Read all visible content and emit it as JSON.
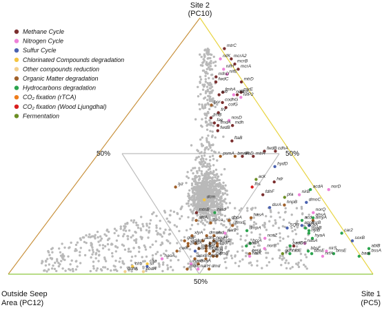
{
  "chart_data": {
    "type": "scatter",
    "subtype": "ternary",
    "vertices": {
      "top": {
        "line1": "Site 2",
        "line2": "(PC10)"
      },
      "left": {
        "line1": "Outside Seep",
        "line2": "Area (PC12)"
      },
      "right": {
        "line1": "Site 1",
        "line2": "(PC5)"
      }
    },
    "edge_labels": {
      "left": "50%",
      "right": "50%",
      "bottom": "50%"
    },
    "edge_colors": {
      "left": "#c8913c",
      "right": "#8ec63f",
      "top": "#e8d440"
    },
    "background_point_color": "#b9b9b9",
    "categories": [
      {
        "name": "Methane Cycle",
        "color": "#7b2f2f"
      },
      {
        "name": "Nitrogen Cycle",
        "color": "#ee82d8"
      },
      {
        "name": "Sulfur Cycle",
        "color": "#4a62b0"
      },
      {
        "name": "Chlorinated Compounds degradation",
        "color": "#f4c542"
      },
      {
        "name": "Other compounds reduction",
        "color": "#f2cf8e"
      },
      {
        "name": "Organic Matter degradation",
        "color": "#a0602a"
      },
      {
        "name": "Hydrocarbons degradation",
        "color": "#2ca44e"
      },
      {
        "name": "CO₂ fixation (rTCA)",
        "color": "#ee7d1b"
      },
      {
        "name": "CO₂ fixation (Wood Ljungdhal)",
        "color": "#d91e1e"
      },
      {
        "name": "Fermentation",
        "color": "#6b8e23"
      }
    ],
    "points": [
      {
        "label": "mtrC",
        "c": 0,
        "a": 0.88,
        "b": 0.07
      },
      {
        "label": "nifK",
        "c": 1,
        "a": 0.84,
        "b": 0.06
      },
      {
        "label": "mcrA2",
        "c": 0,
        "a": 0.84,
        "b": 0.09
      },
      {
        "label": "mcrB",
        "c": 0,
        "a": 0.82,
        "b": 0.1
      },
      {
        "label": "nifH",
        "c": 1,
        "a": 0.8,
        "b": 0.07
      },
      {
        "label": "mcrA",
        "c": 0,
        "a": 0.8,
        "b": 0.11
      },
      {
        "label": "mfnD",
        "c": 0,
        "a": 0.77,
        "b": 0.05
      },
      {
        "label": "nifE",
        "c": 1,
        "a": 0.78,
        "b": 0.08
      },
      {
        "label": "fwdC",
        "c": 0,
        "a": 0.75,
        "b": 0.05
      },
      {
        "label": "mtrD",
        "c": 0,
        "a": 0.75,
        "b": 0.12
      },
      {
        "label": "mtrE",
        "c": 0,
        "a": 0.71,
        "b": 0.12
      },
      {
        "label": "mfr",
        "c": 0,
        "a": 0.7,
        "b": 0.06
      },
      {
        "label": "fmhA",
        "c": 0,
        "a": 0.71,
        "b": 0.07
      },
      {
        "label": "nifB",
        "c": 1,
        "a": 0.7,
        "b": 0.1
      },
      {
        "label": "mtrF",
        "c": 0,
        "a": 0.7,
        "b": 0.11
      },
      {
        "label": "nifP2",
        "c": 1,
        "a": 0.69,
        "b": 0.12
      },
      {
        "label": "por",
        "c": 5,
        "a": 0.66,
        "b": 0.04
      },
      {
        "label": "codhG",
        "c": 0,
        "a": 0.67,
        "b": 0.07
      },
      {
        "label": "cofG",
        "c": 0,
        "a": 0.65,
        "b": 0.08
      },
      {
        "label": "frv",
        "c": 0,
        "a": 0.63,
        "b": 0.06
      },
      {
        "label": "frhB",
        "c": 0,
        "a": 0.61,
        "b": 0.04
      },
      {
        "label": "nosD",
        "c": 1,
        "a": 0.6,
        "b": 0.09
      },
      {
        "label": "fae",
        "c": 0,
        "a": 0.59,
        "b": 0.05
      },
      {
        "label": "mdh",
        "c": 0,
        "a": 0.58,
        "b": 0.1
      },
      {
        "label": "fmdA",
        "c": 0,
        "a": 0.58,
        "b": 0.06
      },
      {
        "label": "fwdB",
        "c": 0,
        "a": 0.56,
        "b": 0.06
      },
      {
        "label": "ftaB",
        "c": 0,
        "a": 0.52,
        "b": 0.1
      },
      {
        "label": "fwdB",
        "c": 0,
        "a": 0.48,
        "b": 0.19
      },
      {
        "label": "cdhA",
        "c": 0,
        "a": 0.48,
        "b": 0.22
      },
      {
        "label": "psmA",
        "c": 5,
        "a": 0.46,
        "b": 0.07
      },
      {
        "label": "bmnR",
        "c": 5,
        "a": 0.46,
        "b": 0.11
      },
      {
        "label": "lksD",
        "c": 0,
        "a": 0.46,
        "b": 0.13
      },
      {
        "label": "mtrH",
        "c": 0,
        "a": 0.46,
        "b": 0.16
      },
      {
        "label": "hydD",
        "c": 2,
        "a": 0.42,
        "b": 0.22
      },
      {
        "label": "ack",
        "c": 9,
        "a": 0.37,
        "b": 0.17
      },
      {
        "label": "hdr",
        "c": 0,
        "a": 0.36,
        "b": 0.22
      },
      {
        "label": "lyz",
        "c": 5,
        "a": 0.34,
        "b": -0.05
      },
      {
        "label": "fhs",
        "c": 8,
        "a": 0.34,
        "b": 0.16
      },
      {
        "label": "acdA",
        "c": 6,
        "a": 0.33,
        "b": 0.32
      },
      {
        "label": "nirB",
        "c": 1,
        "a": 0.31,
        "b": 0.29
      },
      {
        "label": "norD",
        "c": 1,
        "a": 0.33,
        "b": 0.37
      },
      {
        "label": "pta",
        "c": 9,
        "a": 0.3,
        "b": 0.25
      },
      {
        "label": "fdhF",
        "c": 0,
        "a": 0.31,
        "b": 0.19
      },
      {
        "label": "dcm",
        "c": 3,
        "a": 0.29,
        "b": 0.03
      },
      {
        "label": "dmoC",
        "c": 2,
        "a": 0.28,
        "b": 0.31
      },
      {
        "label": "hnpB",
        "c": 5,
        "a": 0.27,
        "b": 0.25
      },
      {
        "label": "dsrA",
        "c": 2,
        "a": 0.26,
        "b": 0.21
      },
      {
        "label": "mtnB",
        "c": 0,
        "a": 0.24,
        "b": 0.01
      },
      {
        "label": "hiad",
        "c": 6,
        "a": 0.24,
        "b": 0.06
      },
      {
        "label": "norQ",
        "c": 1,
        "a": 0.24,
        "b": 0.33
      },
      {
        "label": "hasA",
        "c": 5,
        "a": 0.22,
        "b": 0.16
      },
      {
        "label": "ahsA",
        "c": 6,
        "a": 0.22,
        "b": 0.33
      },
      {
        "label": "afcA",
        "c": 5,
        "a": 0.21,
        "b": 0.01
      },
      {
        "label": "dbpA",
        "c": 5,
        "a": 0.21,
        "b": 0.1
      },
      {
        "label": "acd",
        "c": 6,
        "a": 0.21,
        "b": 0.3
      },
      {
        "label": "amyA",
        "c": 5,
        "a": 0.21,
        "b": 0.33
      },
      {
        "label": "furca",
        "c": 5,
        "a": 0.2,
        "b": 0.05
      },
      {
        "label": "hmrE",
        "c": 5,
        "a": 0.19,
        "b": 0.11
      },
      {
        "label": "aprA",
        "c": 2,
        "a": 0.19,
        "b": 0.3
      },
      {
        "label": "dsrB",
        "c": 2,
        "a": 0.19,
        "b": 0.32
      },
      {
        "label": "SQR",
        "c": 2,
        "a": 0.18,
        "b": 0.26
      },
      {
        "label": "dcaA",
        "c": 6,
        "a": 0.18,
        "b": 0.31
      },
      {
        "label": "nyaB",
        "c": 6,
        "a": 0.17,
        "b": 0.32
      },
      {
        "label": "dmpA",
        "c": 6,
        "a": 0.17,
        "b": 0.15
      },
      {
        "label": "nar2",
        "c": 1,
        "a": 0.16,
        "b": 0.09
      },
      {
        "label": "nyiB",
        "c": 6,
        "a": 0.16,
        "b": 0.32
      },
      {
        "label": "car2",
        "c": 6,
        "a": 0.16,
        "b": 0.41
      },
      {
        "label": "xlyA",
        "c": 5,
        "a": 0.15,
        "b": 0.0
      },
      {
        "label": "dmsA",
        "c": 5,
        "a": 0.15,
        "b": 0.04
      },
      {
        "label": "aad",
        "c": 5,
        "a": 0.15,
        "b": 0.06
      },
      {
        "label": "hyaA",
        "c": 6,
        "a": 0.14,
        "b": 0.33
      },
      {
        "label": "nosZ",
        "c": 1,
        "a": 0.14,
        "b": 0.2
      },
      {
        "label": "gluF",
        "c": 5,
        "a": 0.13,
        "b": -0.02
      },
      {
        "label": "adhC",
        "c": 5,
        "a": 0.13,
        "b": 0.03
      },
      {
        "label": "neuH",
        "c": 5,
        "a": 0.13,
        "b": 0.06
      },
      {
        "label": "soxB",
        "c": 2,
        "a": 0.13,
        "b": 0.44
      },
      {
        "label": "uidA",
        "c": 5,
        "a": 0.12,
        "b": -0.01
      },
      {
        "label": "srfJ",
        "c": 5,
        "a": 0.12,
        "b": 0.01
      },
      {
        "label": "bglA",
        "c": 5,
        "a": 0.12,
        "b": 0.05
      },
      {
        "label": "hmrB",
        "c": 5,
        "a": 0.12,
        "b": 0.07
      },
      {
        "label": "nasA",
        "c": 1,
        "a": 0.12,
        "b": 0.31
      },
      {
        "label": "pinbA",
        "c": 5,
        "a": 0.11,
        "b": -0.01
      },
      {
        "label": "lptB",
        "c": 5,
        "a": 0.11,
        "b": 0.04
      },
      {
        "label": "cgdF",
        "c": 5,
        "a": 0.11,
        "b": 0.07
      },
      {
        "label": "badA",
        "c": 6,
        "a": 0.11,
        "b": 0.15
      },
      {
        "label": "hcrA",
        "c": 6,
        "a": 0.12,
        "b": 0.16
      },
      {
        "label": "badD",
        "c": 6,
        "a": 0.11,
        "b": 0.27
      },
      {
        "label": "mcrB",
        "c": 0,
        "a": 0.11,
        "b": 0.28
      },
      {
        "label": "mfrA",
        "c": 5,
        "a": 0.1,
        "b": 0.02
      },
      {
        "label": "bet",
        "c": 5,
        "a": 0.1,
        "b": 0.04
      },
      {
        "label": "norB",
        "c": 1,
        "a": 0.1,
        "b": 0.2
      },
      {
        "label": "ablB",
        "c": 6,
        "a": 0.1,
        "b": 0.5
      },
      {
        "label": "bbsF",
        "c": 6,
        "a": 0.09,
        "b": 0.32
      },
      {
        "label": "cwlK",
        "c": 5,
        "a": 0.09,
        "b": -0.04
      },
      {
        "label": "tsdA",
        "c": 2,
        "a": 0.09,
        "b": 0.01
      },
      {
        "label": "fbhC",
        "c": 5,
        "a": 0.09,
        "b": 0.04
      },
      {
        "label": "frrB",
        "c": 5,
        "a": 0.09,
        "b": 0.06
      },
      {
        "label": "nirS",
        "c": 1,
        "a": 0.09,
        "b": 0.37
      },
      {
        "label": "gdh",
        "c": 9,
        "a": 0.08,
        "b": 0.25
      },
      {
        "label": "fadE",
        "c": 6,
        "a": 0.08,
        "b": 0.27
      },
      {
        "label": "bssA",
        "c": 6,
        "a": 0.08,
        "b": 0.58
      },
      {
        "label": "ptmD",
        "c": 5,
        "a": 0.08,
        "b": 0.05
      },
      {
        "label": "betA",
        "c": 5,
        "a": 0.08,
        "b": 0.16
      },
      {
        "label": "bbsE",
        "c": 6,
        "a": 0.08,
        "b": 0.33
      },
      {
        "label": "bnsE",
        "c": 6,
        "a": 0.08,
        "b": 0.39
      },
      {
        "label": "cyp",
        "c": 5,
        "a": 0.07,
        "b": 0.06
      },
      {
        "label": "arsB",
        "c": 5,
        "a": 0.07,
        "b": 0.07
      },
      {
        "label": "narK",
        "c": 1,
        "a": 0.07,
        "b": 0.16
      },
      {
        "label": "nrfA",
        "c": 1,
        "a": 0.07,
        "b": 0.36
      },
      {
        "label": "badI",
        "c": 6,
        "a": 0.07,
        "b": 0.46
      },
      {
        "label": "haoA",
        "c": 1,
        "a": 0.06,
        "b": -0.08
      },
      {
        "label": "aoxB",
        "c": 5,
        "a": 0.06,
        "b": 0.01
      },
      {
        "label": "cmbI",
        "c": 5,
        "a": 0.06,
        "b": 0.04
      },
      {
        "label": "clra",
        "c": 3,
        "a": 0.04,
        "b": -0.12
      },
      {
        "label": "narG",
        "c": 1,
        "a": 0.04,
        "b": 0.0
      },
      {
        "label": "exaA",
        "c": 5,
        "a": 0.04,
        "b": 0.02
      },
      {
        "label": "clrb",
        "c": 3,
        "a": 0.03,
        "b": -0.16
      },
      {
        "label": "sir",
        "c": 2,
        "a": 0.03,
        "b": -0.12
      },
      {
        "label": "mdlC",
        "c": 5,
        "a": 0.02,
        "b": -0.01
      },
      {
        "label": "narH",
        "c": 1,
        "a": 0.02,
        "b": 0.02
      },
      {
        "label": "dmd",
        "c": 5,
        "a": 0.02,
        "b": 0.05
      },
      {
        "label": "ddhA",
        "c": 4,
        "a": 0.01,
        "b": -0.18
      },
      {
        "label": "ebdA",
        "c": 4,
        "a": 0.01,
        "b": -0.13
      }
    ]
  }
}
